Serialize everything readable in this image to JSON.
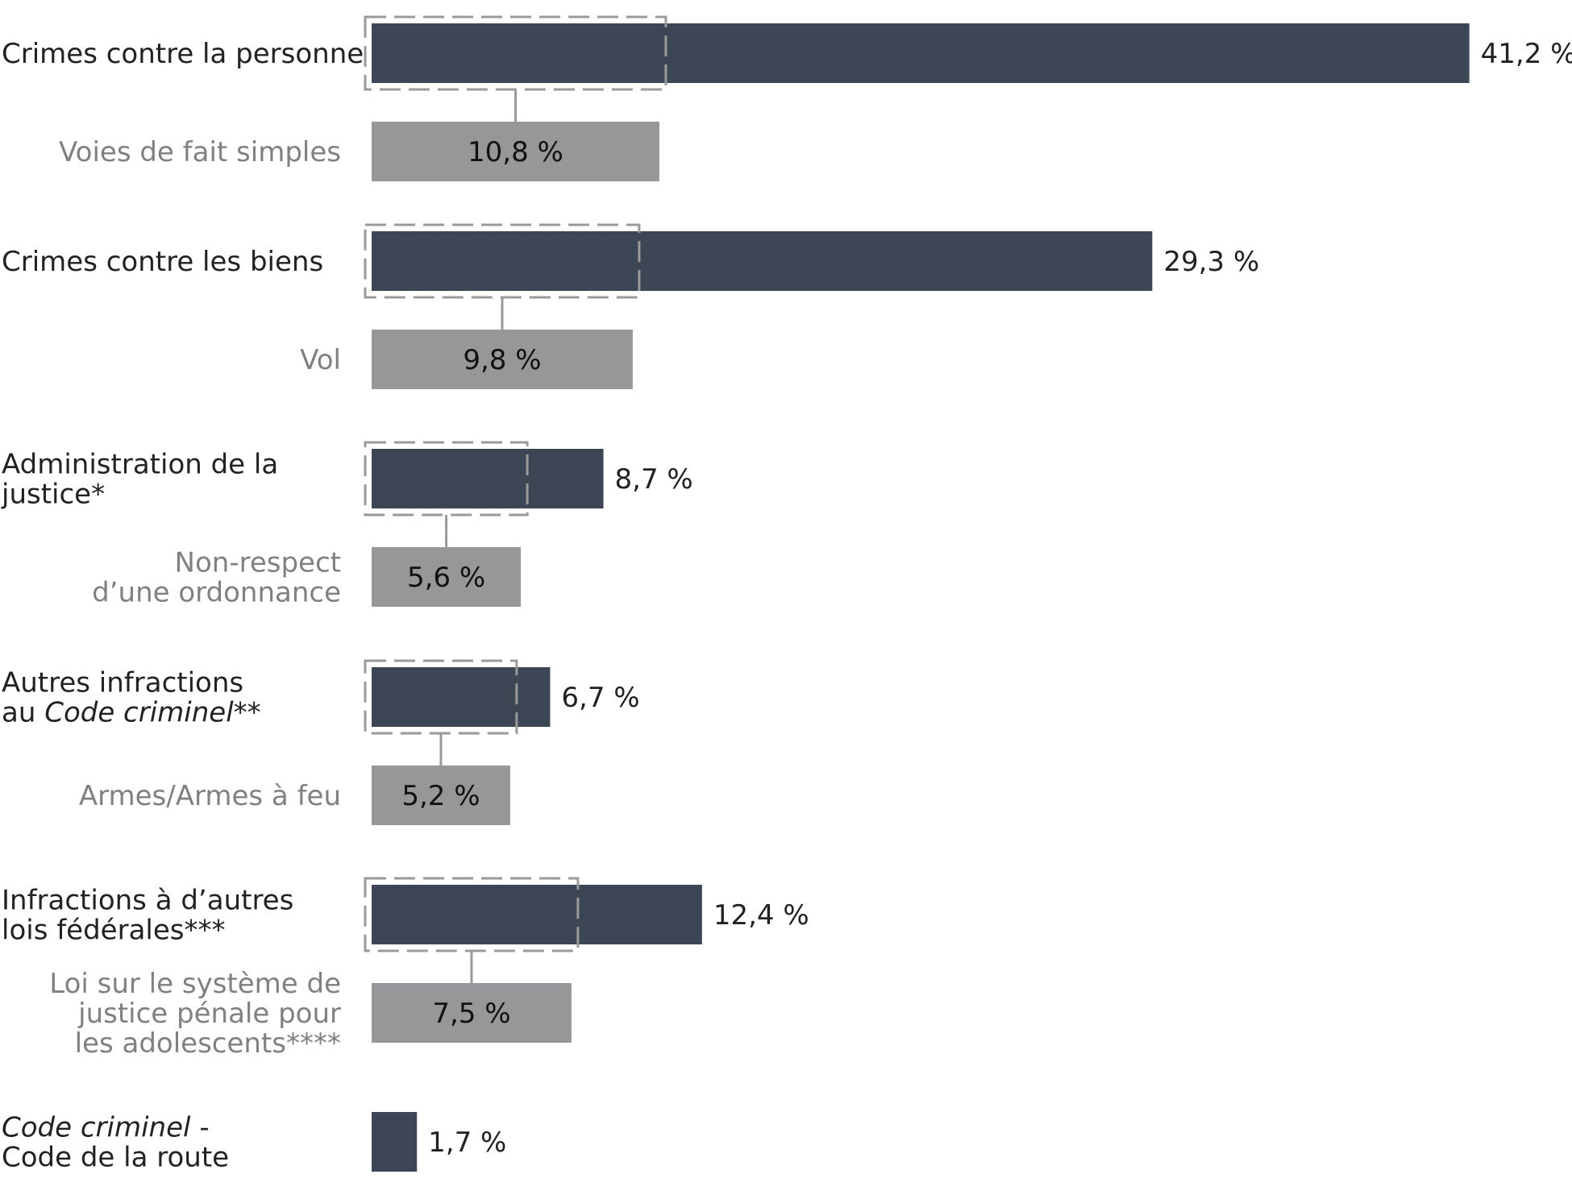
{
  "chart_data": {
    "type": "bar",
    "orientation": "horizontal",
    "value_format": "{v} %",
    "decimal_separator": ",",
    "colors": {
      "category_bar": "#3d4654",
      "subcategory_bar": "#979698",
      "sub_label": "#808080",
      "main_label": "#222222",
      "dashed_outline": "#9a9a9a"
    },
    "groups": [
      {
        "label_lines": [
          "Crimes contre la personne"
        ],
        "italic_words": [],
        "value": 41.2,
        "sub": {
          "label_lines": [
            "Voies de fait simples"
          ],
          "value": 10.8
        }
      },
      {
        "label_lines": [
          "Crimes contre les biens"
        ],
        "italic_words": [],
        "value": 29.3,
        "sub": {
          "label_lines": [
            "Vol"
          ],
          "value": 9.8
        }
      },
      {
        "label_lines": [
          "Administration de la",
          "justice*"
        ],
        "italic_words": [],
        "value": 8.7,
        "sub": {
          "label_lines": [
            "Non-respect",
            "d’une ordonnance"
          ],
          "value": 5.6
        }
      },
      {
        "label_lines": [
          "Autres infractions",
          "au Code criminel**"
        ],
        "italic_words": [
          "Code criminel"
        ],
        "value": 6.7,
        "sub": {
          "label_lines": [
            "Armes/Armes à feu"
          ],
          "value": 5.2
        }
      },
      {
        "label_lines": [
          "Infractions à d’autres",
          "lois fédérales***"
        ],
        "italic_words": [],
        "value": 12.4,
        "sub": {
          "label_lines": [
            "Loi sur le système de",
            "justice pénale pour",
            "les adolescents****"
          ],
          "value": 7.5
        }
      },
      {
        "label_lines": [
          "Code criminel -",
          "Code de la route"
        ],
        "italic_words": [
          "Code criminel -"
        ],
        "value": 1.7,
        "sub": null
      }
    ]
  }
}
